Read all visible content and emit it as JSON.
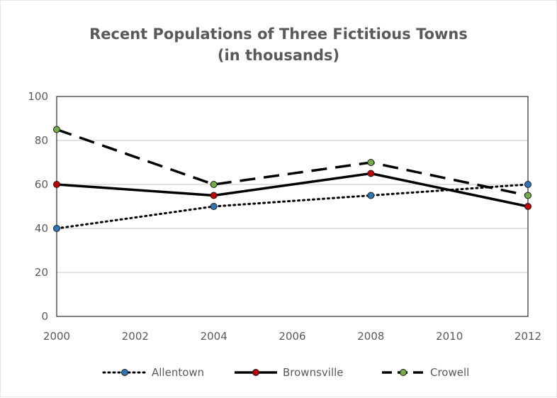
{
  "chart_data": {
    "type": "line",
    "title_line1": "Recent Populations of Three Fictitious Towns",
    "title_line2": "(in thousands)",
    "xlabel": "",
    "ylabel": "",
    "x": [
      2000,
      2004,
      2008,
      2012
    ],
    "x_ticks": [
      2000,
      2002,
      2004,
      2006,
      2008,
      2010,
      2012
    ],
    "xlim": [
      2000,
      2012
    ],
    "ylim": [
      0,
      100
    ],
    "y_ticks": [
      0,
      20,
      40,
      60,
      80,
      100
    ],
    "grid": "horizontal",
    "legend_position": "bottom",
    "series": [
      {
        "name": "Allentown",
        "values": [
          40,
          50,
          55,
          60
        ],
        "line_style": "dotted",
        "line_color": "#000000",
        "marker_color": "#2e75b6"
      },
      {
        "name": "Brownsville",
        "values": [
          60,
          55,
          65,
          50
        ],
        "line_style": "solid",
        "line_color": "#000000",
        "marker_color": "#c00000"
      },
      {
        "name": "Crowell",
        "values": [
          85,
          60,
          70,
          55
        ],
        "line_style": "dashed",
        "line_color": "#000000",
        "marker_color": "#70ad47"
      }
    ]
  }
}
